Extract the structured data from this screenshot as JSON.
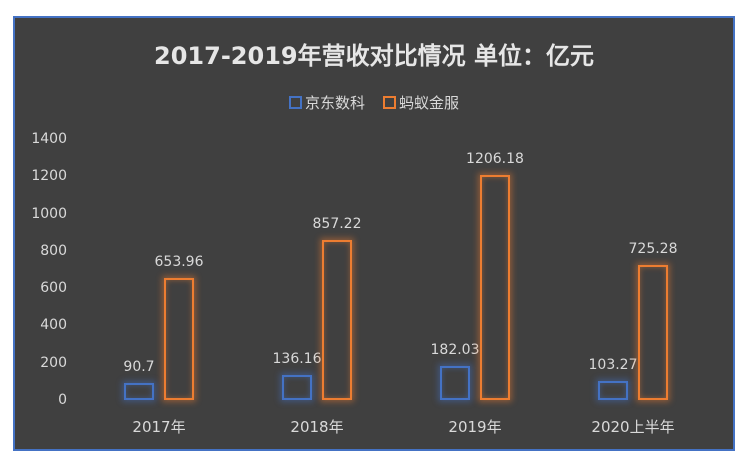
{
  "chart_data": {
    "type": "bar",
    "title": "2017-2019年营收对比情况 单位：亿元",
    "categories": [
      "2017年",
      "2018年",
      "2019年",
      "2020上半年"
    ],
    "series": [
      {
        "name": "京东数科",
        "color": "#4472c4",
        "values": [
          90.7,
          136.16,
          182.03,
          103.27
        ],
        "labels": [
          "90.7",
          "136.16",
          "182.03",
          "103.27"
        ]
      },
      {
        "name": "蚂蚁金服",
        "color": "#ed7d31",
        "values": [
          653.96,
          857.22,
          1206.18,
          725.28
        ],
        "labels": [
          "653.96",
          "857.22",
          "1206.18",
          "725.28"
        ]
      }
    ],
    "xlabel": "",
    "ylabel": "",
    "ylim": [
      0,
      1400
    ],
    "yticks": [
      "0",
      "200",
      "400",
      "600",
      "800",
      "1000",
      "1200",
      "1400"
    ],
    "grid": false,
    "legend_position": "top",
    "bar_style": "outline-glow"
  }
}
